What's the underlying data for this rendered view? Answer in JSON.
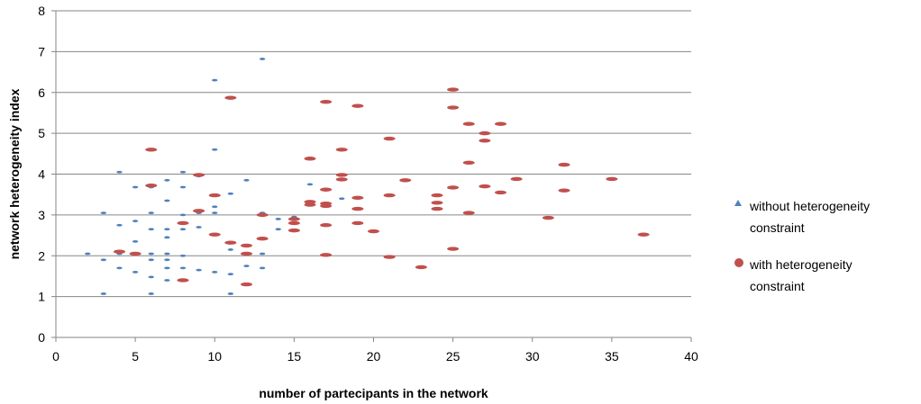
{
  "chart_data": {
    "type": "scatter",
    "xlabel": "number of partecipants in the network",
    "ylabel": "network heterogeneity index",
    "xlim": [
      0,
      40
    ],
    "ylim": [
      0,
      8
    ],
    "x_ticks": [
      "0",
      "5",
      "10",
      "15",
      "20",
      "25",
      "30",
      "35",
      "40"
    ],
    "y_ticks": [
      "0",
      "1",
      "2",
      "3",
      "4",
      "5",
      "6",
      "7",
      "8"
    ],
    "grid": "horizontal",
    "legend_position": "right",
    "series": [
      {
        "name": "without heterogeneity constraint",
        "label_lines": [
          "without heterogeneity",
          "constraint"
        ],
        "marker": "triangle",
        "color": "#4F81BD",
        "points": [
          [
            2,
            2.05
          ],
          [
            3,
            1.07
          ],
          [
            3,
            1.9
          ],
          [
            3,
            3.05
          ],
          [
            4,
            1.7
          ],
          [
            4,
            2.05
          ],
          [
            4,
            2.75
          ],
          [
            4,
            4.05
          ],
          [
            5,
            1.6
          ],
          [
            5,
            2.05
          ],
          [
            5,
            2.35
          ],
          [
            5,
            2.85
          ],
          [
            5,
            3.68
          ],
          [
            6,
            1.07
          ],
          [
            6,
            1.48
          ],
          [
            6,
            1.9
          ],
          [
            6,
            2.05
          ],
          [
            6,
            2.65
          ],
          [
            6,
            3.05
          ],
          [
            6,
            3.68
          ],
          [
            7,
            1.4
          ],
          [
            7,
            1.7
          ],
          [
            7,
            1.9
          ],
          [
            7,
            2.05
          ],
          [
            7,
            2.45
          ],
          [
            7,
            2.65
          ],
          [
            7,
            3.35
          ],
          [
            7,
            3.85
          ],
          [
            8,
            1.4
          ],
          [
            8,
            1.7
          ],
          [
            8,
            2.0
          ],
          [
            8,
            2.65
          ],
          [
            8,
            3.0
          ],
          [
            8,
            3.68
          ],
          [
            8,
            4.05
          ],
          [
            9,
            1.65
          ],
          [
            9,
            2.7
          ],
          [
            9,
            3.05
          ],
          [
            9,
            3.95
          ],
          [
            10,
            1.6
          ],
          [
            10,
            3.05
          ],
          [
            10,
            3.2
          ],
          [
            10,
            4.6
          ],
          [
            10,
            6.3
          ],
          [
            11,
            1.07
          ],
          [
            11,
            1.55
          ],
          [
            11,
            2.15
          ],
          [
            11,
            3.52
          ],
          [
            12,
            1.75
          ],
          [
            12,
            3.85
          ],
          [
            13,
            1.7
          ],
          [
            13,
            2.05
          ],
          [
            13,
            3.05
          ],
          [
            13,
            6.82
          ],
          [
            14,
            2.65
          ],
          [
            14,
            2.9
          ],
          [
            15,
            2.95
          ],
          [
            16,
            3.75
          ],
          [
            18,
            3.4
          ]
        ]
      },
      {
        "name": "with heterogeneity constraint",
        "label_lines": [
          "with heterogeneity",
          "constraint"
        ],
        "marker": "circle",
        "color": "#C0504D",
        "points": [
          [
            4,
            2.1
          ],
          [
            5,
            2.05
          ],
          [
            6,
            3.72
          ],
          [
            6,
            4.6
          ],
          [
            8,
            1.4
          ],
          [
            8,
            2.8
          ],
          [
            9,
            3.1
          ],
          [
            9,
            3.98
          ],
          [
            10,
            2.52
          ],
          [
            10,
            3.48
          ],
          [
            11,
            2.32
          ],
          [
            11,
            5.87
          ],
          [
            12,
            1.3
          ],
          [
            12,
            2.05
          ],
          [
            12,
            2.25
          ],
          [
            13,
            2.42
          ],
          [
            13,
            3.0
          ],
          [
            15,
            2.62
          ],
          [
            15,
            2.8
          ],
          [
            15,
            2.9
          ],
          [
            16,
            3.25
          ],
          [
            16,
            3.32
          ],
          [
            16,
            4.38
          ],
          [
            17,
            2.02
          ],
          [
            17,
            2.75
          ],
          [
            17,
            3.22
          ],
          [
            17,
            3.28
          ],
          [
            17,
            3.62
          ],
          [
            17,
            5.77
          ],
          [
            18,
            3.87
          ],
          [
            18,
            3.98
          ],
          [
            18,
            4.6
          ],
          [
            19,
            2.8
          ],
          [
            19,
            3.15
          ],
          [
            19,
            3.42
          ],
          [
            19,
            5.67
          ],
          [
            20,
            2.6
          ],
          [
            21,
            1.97
          ],
          [
            21,
            3.48
          ],
          [
            21,
            4.87
          ],
          [
            22,
            3.85
          ],
          [
            23,
            1.72
          ],
          [
            24,
            3.15
          ],
          [
            24,
            3.3
          ],
          [
            24,
            3.48
          ],
          [
            25,
            2.17
          ],
          [
            25,
            3.67
          ],
          [
            25,
            5.63
          ],
          [
            25,
            6.07
          ],
          [
            26,
            3.05
          ],
          [
            26,
            4.28
          ],
          [
            26,
            5.23
          ],
          [
            27,
            3.7
          ],
          [
            27,
            4.82
          ],
          [
            27,
            5.0
          ],
          [
            28,
            3.55
          ],
          [
            28,
            5.23
          ],
          [
            29,
            3.88
          ],
          [
            31,
            2.93
          ],
          [
            32,
            3.6
          ],
          [
            32,
            4.23
          ],
          [
            35,
            3.88
          ],
          [
            37,
            2.52
          ]
        ]
      }
    ]
  }
}
